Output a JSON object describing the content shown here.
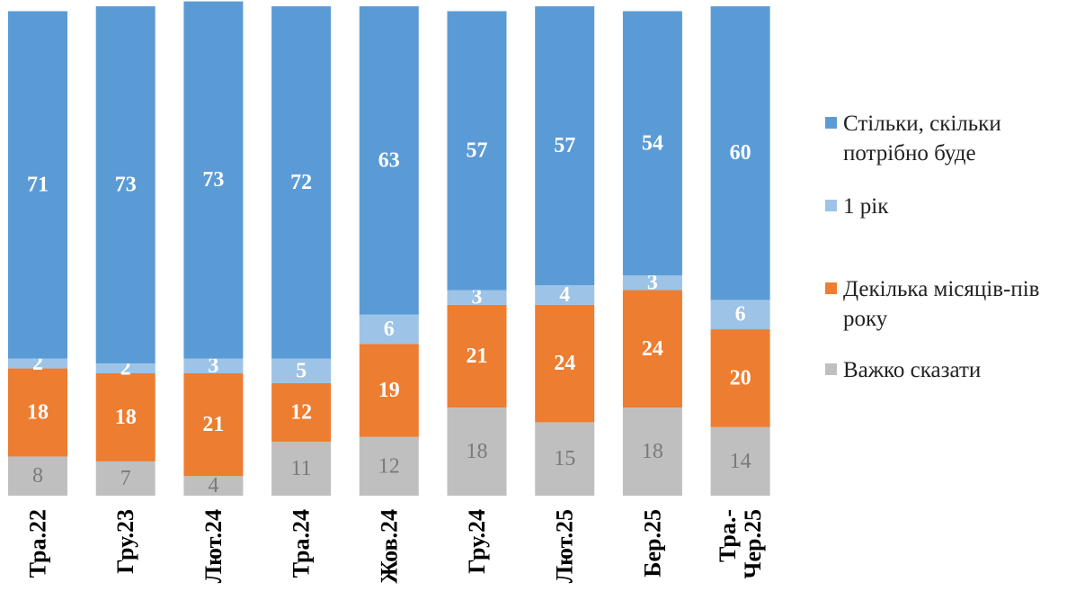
{
  "chart_data": {
    "type": "bar",
    "stacked": true,
    "percent": true,
    "categories": [
      "Тра.22",
      "Гру.23",
      "Лют.24",
      "Тра.24",
      "Жов.24",
      "Гру.24",
      "Лют.25",
      "Бер.25",
      "Тра.-\nЧер.25"
    ],
    "series": [
      {
        "name": "Важко сказати",
        "color": "#bfbfbf",
        "values": [
          8,
          7,
          4,
          11,
          12,
          18,
          15,
          18,
          14
        ]
      },
      {
        "name": "Декілька місяців-пів року",
        "color": "#ed7d31",
        "values": [
          18,
          18,
          21,
          12,
          19,
          21,
          24,
          24,
          20
        ]
      },
      {
        "name": "1 рік",
        "color": "#9dc3e6",
        "values": [
          2,
          2,
          3,
          5,
          6,
          3,
          4,
          3,
          6
        ]
      },
      {
        "name": "Стільки, скільки потрібно буде",
        "color": "#5b9bd5",
        "values": [
          71,
          73,
          73,
          72,
          63,
          57,
          57,
          54,
          60
        ]
      }
    ],
    "legend_order": [
      3,
      2,
      1,
      0
    ],
    "legend_position": "right",
    "category_label_orientation": "vertical",
    "ylim": [
      0,
      100
    ],
    "grid": false
  }
}
